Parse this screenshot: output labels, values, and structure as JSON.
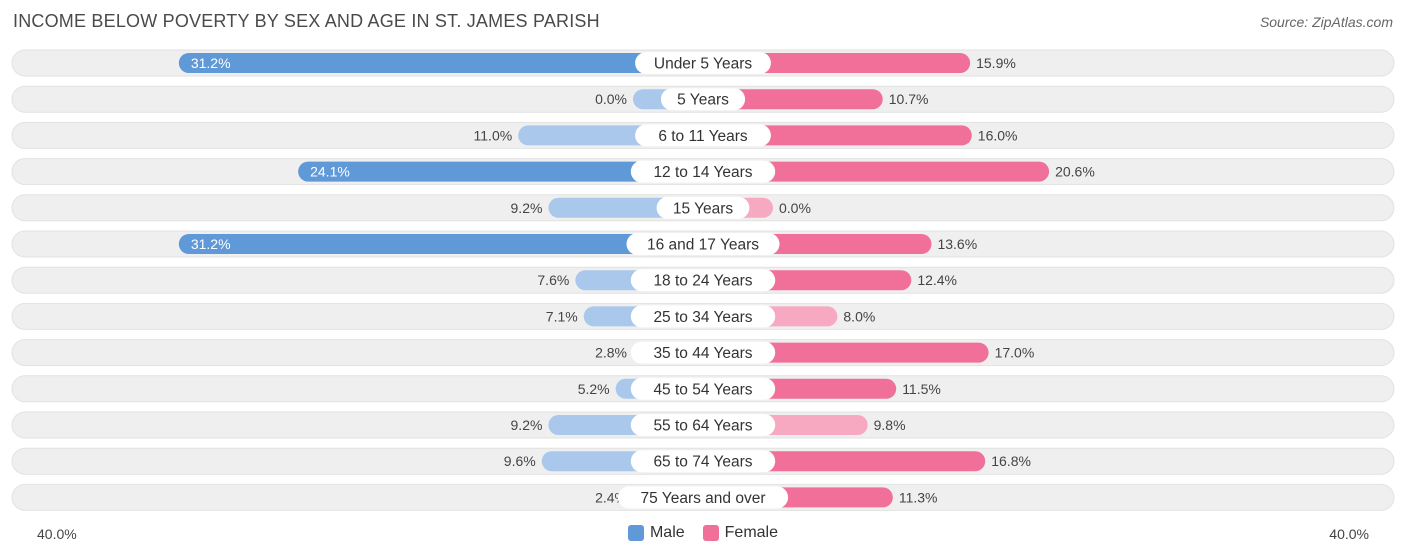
{
  "title": "INCOME BELOW POVERTY BY SEX AND AGE IN ST. JAMES PARISH",
  "source": "Source: ZipAtlas.com",
  "colors": {
    "male_strong": "#5f99d8",
    "male_light": "#a9c8eb",
    "female_strong": "#f0709a",
    "female_light": "#f7a9c2",
    "row_bg": "#efefef"
  },
  "legend": {
    "male": "Male",
    "female": "Female"
  },
  "axis": {
    "left_label": "40.0%",
    "right_label": "40.0%"
  },
  "chart_data": {
    "type": "bar",
    "orientation": "horizontal-diverging",
    "categories": [
      "Under 5 Years",
      "5 Years",
      "6 to 11 Years",
      "12 to 14 Years",
      "15 Years",
      "16 and 17 Years",
      "18 to 24 Years",
      "25 to 34 Years",
      "35 to 44 Years",
      "45 to 54 Years",
      "55 to 64 Years",
      "65 to 74 Years",
      "75 Years and over"
    ],
    "series": [
      {
        "name": "Male",
        "values": [
          31.2,
          0.0,
          11.0,
          24.1,
          9.2,
          31.2,
          7.6,
          7.1,
          2.8,
          5.2,
          9.2,
          9.6,
          2.4
        ],
        "labels": [
          "31.2%",
          "0.0%",
          "11.0%",
          "24.1%",
          "9.2%",
          "31.2%",
          "7.6%",
          "7.1%",
          "2.8%",
          "5.2%",
          "9.2%",
          "9.6%",
          "2.4%"
        ]
      },
      {
        "name": "Female",
        "values": [
          15.9,
          10.7,
          16.0,
          20.6,
          0.0,
          13.6,
          12.4,
          8.0,
          17.0,
          11.5,
          9.8,
          16.8,
          11.3
        ],
        "labels": [
          "15.9%",
          "10.7%",
          "16.0%",
          "20.6%",
          "0.0%",
          "13.6%",
          "12.4%",
          "8.0%",
          "17.0%",
          "11.5%",
          "9.8%",
          "16.8%",
          "11.3%"
        ]
      }
    ],
    "xlim": [
      -40,
      40
    ],
    "legend_position": "bottom-center"
  }
}
